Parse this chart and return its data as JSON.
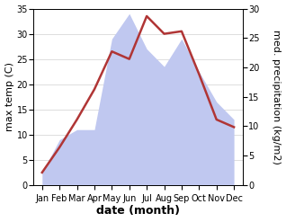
{
  "months": [
    "Jan",
    "Feb",
    "Mar",
    "Apr",
    "May",
    "Jun",
    "Jul",
    "Aug",
    "Sep",
    "Oct",
    "Nov",
    "Dec"
  ],
  "temp": [
    2.5,
    7.5,
    13.0,
    19.0,
    26.5,
    25.0,
    33.5,
    30.0,
    30.5,
    22.0,
    13.0,
    11.5
  ],
  "precip": [
    2.5,
    9.0,
    11.0,
    11.0,
    29.0,
    34.0,
    27.0,
    23.5,
    29.0,
    22.5,
    16.5,
    13.0
  ],
  "temp_color": "#b03535",
  "precip_fill_color": "#c0c8f0",
  "bg_color": "#ffffff",
  "ylabel_left": "max temp (C)",
  "ylabel_right": "med. precipitation (kg/m2)",
  "xlabel": "date (month)",
  "ylim": [
    0,
    35
  ],
  "yticks_left": [
    0,
    5,
    10,
    15,
    20,
    25,
    30,
    35
  ],
  "yticks_right": [
    0,
    5,
    10,
    15,
    20,
    25,
    30
  ],
  "precip_scale_factor": 0.857,
  "tick_fontsize": 7,
  "label_fontsize": 8,
  "xlabel_fontsize": 9,
  "temp_linewidth": 1.8
}
